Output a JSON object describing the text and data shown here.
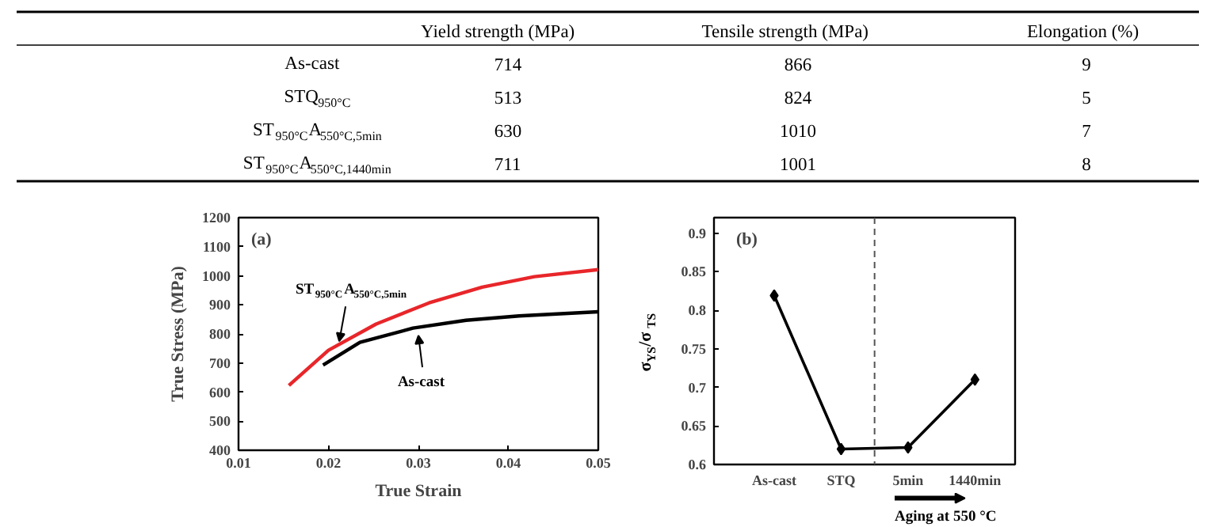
{
  "chart_data": [
    {
      "type": "other",
      "annotations": [
        "Yield strength (MPa)",
        "Tensile strength (MPa)",
        "Elongation (%)",
        "As-cast",
        "714",
        "866",
        "9",
        "STQ$_{950°C}$",
        "513",
        "824",
        "5",
        "ST$_{950°C}$A$_{550°C,5min}$",
        "630",
        "1010",
        "7",
        "ST$_{950°C}$A$_{550°C,1440min}$",
        "711",
        "1001",
        "8"
      ]
    },
    {
      "type": "line",
      "title": "(a)",
      "xlabel": "True Strain",
      "ylabel": "True Stress (MPa)",
      "xlim": [
        0.01,
        0.05
      ],
      "ylim": [
        400,
        1200
      ],
      "xticks": [
        0.01,
        0.02,
        0.03,
        0.04,
        0.05
      ],
      "yticks": [
        400,
        500,
        600,
        700,
        800,
        900,
        1000,
        1100,
        1200
      ],
      "grid": false,
      "series": [
        {
          "color": "#e8262a",
          "x": [
            0.0156,
            0.02,
            0.0253,
            0.0312,
            0.0371,
            0.0429,
            0.05
          ],
          "values": [
            623,
            744,
            834,
            907,
            961,
            997,
            1021
          ]
        },
        {
          "color": "#000000",
          "x": [
            0.0194,
            0.0235,
            0.0294,
            0.0353,
            0.0412,
            0.05
          ],
          "values": [
            693,
            771,
            820,
            847,
            862,
            876
          ]
        }
      ],
      "annotations": [
        {
          "text": "ST$_{950°C}$A$_{550°C,5min}$",
          "x": 0.0212,
          "y": 753
        },
        {
          "text": "As-cast",
          "x": 0.03,
          "y": 816
        }
      ]
    },
    {
      "type": "line",
      "title": "(b)",
      "ylabel": "σ$_{YS}$/σ$_{TS}$",
      "categories": [
        "As-cast",
        "STQ",
        "5min",
        "1440min"
      ],
      "values": [
        0.819,
        0.62,
        0.622,
        0.71
      ],
      "color": "#000000",
      "marker": "diamond",
      "ylim": [
        0.6,
        0.92
      ],
      "yticks": [
        0.6,
        0.65,
        0.7,
        0.75,
        0.8,
        0.85,
        0.9
      ],
      "grid": false,
      "annotations": [
        "Aging at 550 °C"
      ]
    }
  ]
}
